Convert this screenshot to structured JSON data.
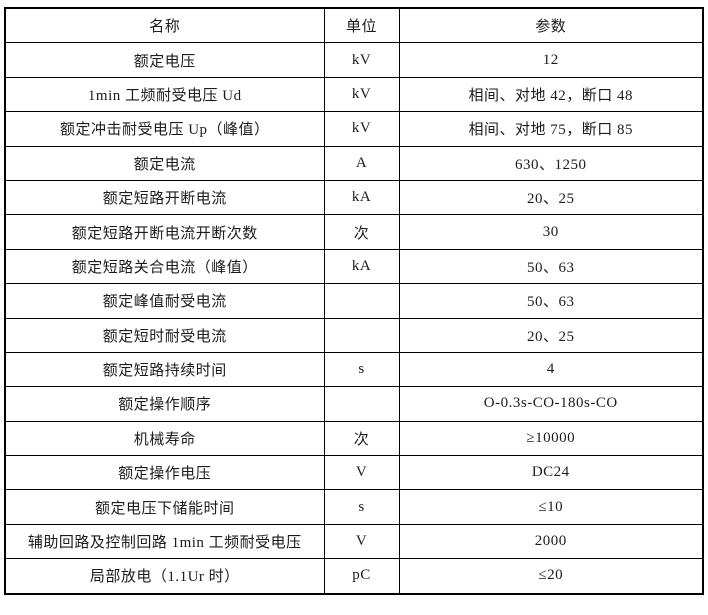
{
  "table": {
    "header": {
      "name": "名称",
      "unit": "单位",
      "value": "参数"
    },
    "rows": [
      {
        "name": "额定电压",
        "unit": "kV",
        "value": "12"
      },
      {
        "name": "1min 工频耐受电压 Ud",
        "unit": "kV",
        "value": "相间、对地 42，断口 48"
      },
      {
        "name": "额定冲击耐受电压 Up（峰值）",
        "unit": "kV",
        "value": "相间、对地 75，断口 85"
      },
      {
        "name": "额定电流",
        "unit": "A",
        "value": "630、1250"
      },
      {
        "name": "额定短路开断电流",
        "unit": "kA",
        "value": "20、25"
      },
      {
        "name": "额定短路开断电流开断次数",
        "unit": "次",
        "value": "30"
      },
      {
        "name": "额定短路关合电流（峰值）",
        "unit": "kA",
        "value": "50、63"
      },
      {
        "name": "额定峰值耐受电流",
        "unit": "",
        "value": "50、63"
      },
      {
        "name": "额定短时耐受电流",
        "unit": "",
        "value": "20、25"
      },
      {
        "name": "额定短路持续时间",
        "unit": "s",
        "value": "4"
      },
      {
        "name": "额定操作顺序",
        "unit": "",
        "value": "O-0.3s-CO-180s-CO"
      },
      {
        "name": "机械寿命",
        "unit": "次",
        "value": "≥10000"
      },
      {
        "name": "额定操作电压",
        "unit": "V",
        "value": "DC24"
      },
      {
        "name": "额定电压下储能时间",
        "unit": "s",
        "value": "≤10"
      },
      {
        "name": "辅助回路及控制回路 1min 工频耐受电压",
        "unit": "V",
        "value": "2000"
      },
      {
        "name": "局部放电（1.1Ur 时）",
        "unit": "pC",
        "value": "≤20"
      }
    ],
    "colors": {
      "border": "#000000",
      "text": "#1c1c1c",
      "background": "#ffffff"
    }
  }
}
